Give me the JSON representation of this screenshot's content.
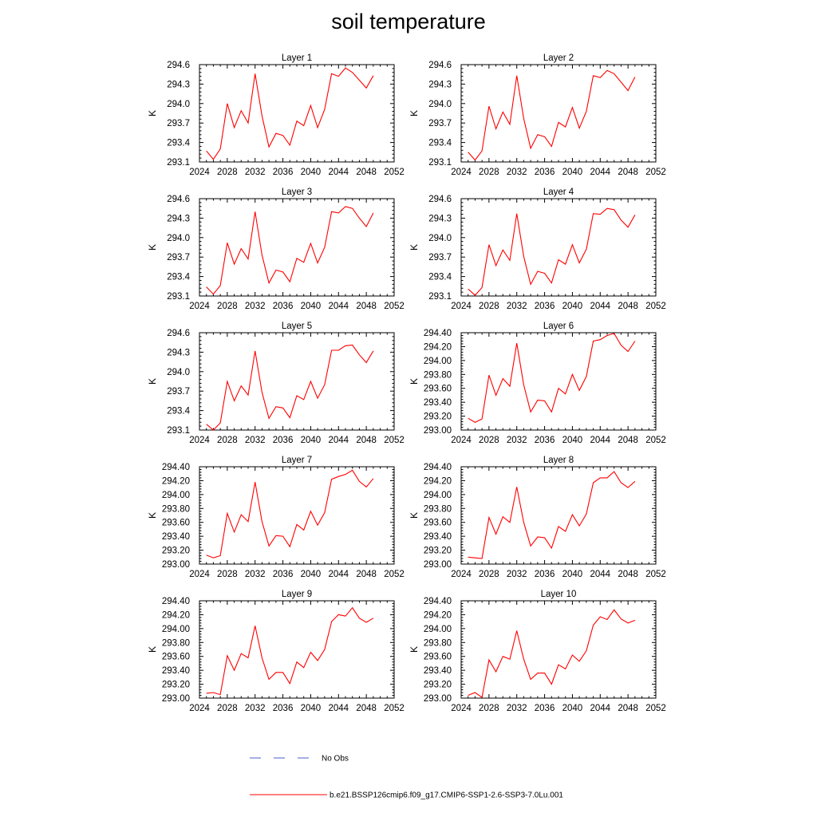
{
  "title": "soil temperature",
  "chart_data": [
    {
      "type": "line",
      "title": "Layer 1",
      "ylabel": "K",
      "xlim": [
        2024,
        2052
      ],
      "xticks": [
        "2024",
        "2028",
        "2032",
        "2036",
        "2040",
        "2044",
        "2048",
        "2052"
      ],
      "ylim": [
        293.1,
        294.6
      ],
      "yticks": [
        "293.1",
        "293.4",
        "293.7",
        "294.0",
        "294.3",
        "294.6"
      ],
      "series": [
        {
          "color": "#ff0000",
          "x": [
            2025,
            2026,
            2027,
            2028,
            2029,
            2030,
            2031,
            2032,
            2033,
            2034,
            2035,
            2036,
            2037,
            2038,
            2039,
            2040,
            2041,
            2042,
            2043,
            2044,
            2045,
            2046,
            2047,
            2048,
            2049
          ],
          "y": [
            293.27,
            293.14,
            293.3,
            294.0,
            293.63,
            293.89,
            293.7,
            294.46,
            293.81,
            293.33,
            293.54,
            293.51,
            293.36,
            293.73,
            293.66,
            293.97,
            293.63,
            293.91,
            294.46,
            294.42,
            294.55,
            294.48,
            294.36,
            294.24,
            294.43
          ]
        }
      ]
    },
    {
      "type": "line",
      "title": "Layer 2",
      "ylabel": "K",
      "xlim": [
        2024,
        2052
      ],
      "xticks": [
        "2024",
        "2028",
        "2032",
        "2036",
        "2040",
        "2044",
        "2048",
        "2052"
      ],
      "ylim": [
        293.1,
        294.6
      ],
      "yticks": [
        "293.1",
        "293.4",
        "293.7",
        "294.0",
        "294.3",
        "294.6"
      ],
      "series": [
        {
          "color": "#ff0000",
          "x": [
            2025,
            2026,
            2027,
            2028,
            2029,
            2030,
            2031,
            2032,
            2033,
            2034,
            2035,
            2036,
            2037,
            2038,
            2039,
            2040,
            2041,
            2042,
            2043,
            2044,
            2045,
            2046,
            2047,
            2048,
            2049
          ],
          "y": [
            293.25,
            293.13,
            293.27,
            293.96,
            293.61,
            293.87,
            293.68,
            294.43,
            293.77,
            293.31,
            293.52,
            293.49,
            293.34,
            293.71,
            293.64,
            293.94,
            293.62,
            293.88,
            294.43,
            294.4,
            294.51,
            294.46,
            294.33,
            294.2,
            294.41
          ]
        }
      ]
    },
    {
      "type": "line",
      "title": "Layer 3",
      "ylabel": "K",
      "xlim": [
        2024,
        2052
      ],
      "xticks": [
        "2024",
        "2028",
        "2032",
        "2036",
        "2040",
        "2044",
        "2048",
        "2052"
      ],
      "ylim": [
        293.1,
        294.6
      ],
      "yticks": [
        "293.1",
        "293.4",
        "293.7",
        "294.0",
        "294.3",
        "294.6"
      ],
      "series": [
        {
          "color": "#ff0000",
          "x": [
            2025,
            2026,
            2027,
            2028,
            2029,
            2030,
            2031,
            2032,
            2033,
            2034,
            2035,
            2036,
            2037,
            2038,
            2039,
            2040,
            2041,
            2042,
            2043,
            2044,
            2045,
            2046,
            2047,
            2048,
            2049
          ],
          "y": [
            293.24,
            293.13,
            293.26,
            293.92,
            293.59,
            293.83,
            293.67,
            294.4,
            293.73,
            293.3,
            293.5,
            293.47,
            293.32,
            293.68,
            293.62,
            293.91,
            293.61,
            293.85,
            294.4,
            294.38,
            294.48,
            294.45,
            294.3,
            294.17,
            294.38
          ]
        }
      ]
    },
    {
      "type": "line",
      "title": "Layer 4",
      "ylabel": "K",
      "xlim": [
        2024,
        2052
      ],
      "xticks": [
        "2024",
        "2028",
        "2032",
        "2036",
        "2040",
        "2044",
        "2048",
        "2052"
      ],
      "ylim": [
        293.1,
        294.6
      ],
      "yticks": [
        "293.1",
        "293.4",
        "293.7",
        "294.0",
        "294.3",
        "294.6"
      ],
      "series": [
        {
          "color": "#ff0000",
          "x": [
            2025,
            2026,
            2027,
            2028,
            2029,
            2030,
            2031,
            2032,
            2033,
            2034,
            2035,
            2036,
            2037,
            2038,
            2039,
            2040,
            2041,
            2042,
            2043,
            2044,
            2045,
            2046,
            2047,
            2048,
            2049
          ],
          "y": [
            293.21,
            293.11,
            293.23,
            293.89,
            293.57,
            293.81,
            293.65,
            294.37,
            293.71,
            293.28,
            293.48,
            293.45,
            293.3,
            293.66,
            293.59,
            293.89,
            293.61,
            293.82,
            294.37,
            294.36,
            294.45,
            294.43,
            294.27,
            294.16,
            294.35
          ]
        }
      ]
    },
    {
      "type": "line",
      "title": "Layer 5",
      "ylabel": "K",
      "xlim": [
        2024,
        2052
      ],
      "xticks": [
        "2024",
        "2028",
        "2032",
        "2036",
        "2040",
        "2044",
        "2048",
        "2052"
      ],
      "ylim": [
        293.1,
        294.6
      ],
      "yticks": [
        "293.1",
        "293.4",
        "293.7",
        "294.0",
        "294.3",
        "294.6"
      ],
      "series": [
        {
          "color": "#ff0000",
          "x": [
            2025,
            2026,
            2027,
            2028,
            2029,
            2030,
            2031,
            2032,
            2033,
            2034,
            2035,
            2036,
            2037,
            2038,
            2039,
            2040,
            2041,
            2042,
            2043,
            2044,
            2045,
            2046,
            2047,
            2048,
            2049
          ],
          "y": [
            293.19,
            293.1,
            293.21,
            293.85,
            293.55,
            293.78,
            293.64,
            294.32,
            293.68,
            293.28,
            293.46,
            293.44,
            293.29,
            293.63,
            293.57,
            293.85,
            293.59,
            293.8,
            294.33,
            294.33,
            294.4,
            294.41,
            294.26,
            294.14,
            294.32
          ]
        }
      ]
    },
    {
      "type": "line",
      "title": "Layer 6",
      "ylabel": "K",
      "xlim": [
        2024,
        2052
      ],
      "xticks": [
        "2024",
        "2028",
        "2032",
        "2036",
        "2040",
        "2044",
        "2048",
        "2052"
      ],
      "ylim": [
        293.0,
        294.4
      ],
      "yticks": [
        "293.00",
        "293.20",
        "293.40",
        "293.60",
        "293.80",
        "294.00",
        "294.20",
        "294.40"
      ],
      "series": [
        {
          "color": "#ff0000",
          "x": [
            2025,
            2026,
            2027,
            2028,
            2029,
            2030,
            2031,
            2032,
            2033,
            2034,
            2035,
            2036,
            2037,
            2038,
            2039,
            2040,
            2041,
            2042,
            2043,
            2044,
            2045,
            2046,
            2047,
            2048,
            2049
          ],
          "y": [
            293.17,
            293.11,
            293.16,
            293.79,
            293.5,
            293.74,
            293.63,
            294.25,
            293.65,
            293.26,
            293.43,
            293.42,
            293.26,
            293.6,
            293.52,
            293.8,
            293.57,
            293.77,
            294.28,
            294.3,
            294.36,
            294.39,
            294.22,
            294.13,
            294.28
          ]
        }
      ]
    },
    {
      "type": "line",
      "title": "Layer 7",
      "ylabel": "K",
      "xlim": [
        2024,
        2052
      ],
      "xticks": [
        "2024",
        "2028",
        "2032",
        "2036",
        "2040",
        "2044",
        "2048",
        "2052"
      ],
      "ylim": [
        293.0,
        294.4
      ],
      "yticks": [
        "293.00",
        "293.20",
        "293.40",
        "293.60",
        "293.80",
        "294.00",
        "294.20",
        "294.40"
      ],
      "series": [
        {
          "color": "#ff0000",
          "x": [
            2025,
            2026,
            2027,
            2028,
            2029,
            2030,
            2031,
            2032,
            2033,
            2034,
            2035,
            2036,
            2037,
            2038,
            2039,
            2040,
            2041,
            2042,
            2043,
            2044,
            2045,
            2046,
            2047,
            2048,
            2049
          ],
          "y": [
            293.13,
            293.09,
            293.12,
            293.73,
            293.46,
            293.71,
            293.61,
            294.18,
            293.61,
            293.26,
            293.41,
            293.4,
            293.25,
            293.57,
            293.49,
            293.76,
            293.56,
            293.74,
            294.22,
            294.26,
            294.29,
            294.35,
            294.19,
            294.11,
            294.23
          ]
        }
      ]
    },
    {
      "type": "line",
      "title": "Layer 8",
      "ylabel": "K",
      "xlim": [
        2024,
        2052
      ],
      "xticks": [
        "2024",
        "2028",
        "2032",
        "2036",
        "2040",
        "2044",
        "2048",
        "2052"
      ],
      "ylim": [
        293.0,
        294.4
      ],
      "yticks": [
        "293.00",
        "293.20",
        "293.40",
        "293.60",
        "293.80",
        "294.00",
        "294.20",
        "294.40"
      ],
      "series": [
        {
          "color": "#ff0000",
          "x": [
            2025,
            2026,
            2027,
            2028,
            2029,
            2030,
            2031,
            2032,
            2033,
            2034,
            2035,
            2036,
            2037,
            2038,
            2039,
            2040,
            2041,
            2042,
            2043,
            2044,
            2045,
            2046,
            2047,
            2048,
            2049
          ],
          "y": [
            293.1,
            293.09,
            293.08,
            293.67,
            293.43,
            293.68,
            293.6,
            294.11,
            293.6,
            293.26,
            293.39,
            293.38,
            293.23,
            293.54,
            293.47,
            293.71,
            293.55,
            293.72,
            294.17,
            294.24,
            294.24,
            294.33,
            294.17,
            294.1,
            294.19
          ]
        }
      ]
    },
    {
      "type": "line",
      "title": "Layer 9",
      "ylabel": "K",
      "xlim": [
        2024,
        2052
      ],
      "xticks": [
        "2024",
        "2028",
        "2032",
        "2036",
        "2040",
        "2044",
        "2048",
        "2052"
      ],
      "ylim": [
        293.0,
        294.4
      ],
      "yticks": [
        "293.00",
        "293.20",
        "293.40",
        "293.60",
        "293.80",
        "294.00",
        "294.20",
        "294.40"
      ],
      "series": [
        {
          "color": "#ff0000",
          "x": [
            2025,
            2026,
            2027,
            2028,
            2029,
            2030,
            2031,
            2032,
            2033,
            2034,
            2035,
            2036,
            2037,
            2038,
            2039,
            2040,
            2041,
            2042,
            2043,
            2044,
            2045,
            2046,
            2047,
            2048,
            2049
          ],
          "y": [
            293.07,
            293.08,
            293.05,
            293.61,
            293.4,
            293.64,
            293.58,
            294.04,
            293.58,
            293.27,
            293.37,
            293.37,
            293.21,
            293.52,
            293.44,
            293.66,
            293.54,
            293.7,
            294.1,
            294.2,
            294.18,
            294.3,
            294.15,
            294.09,
            294.15
          ]
        }
      ]
    },
    {
      "type": "line",
      "title": "Layer 10",
      "ylabel": "K",
      "xlim": [
        2024,
        2052
      ],
      "xticks": [
        "2024",
        "2028",
        "2032",
        "2036",
        "2040",
        "2044",
        "2048",
        "2052"
      ],
      "ylim": [
        293.0,
        294.4
      ],
      "yticks": [
        "293.00",
        "293.20",
        "293.40",
        "293.60",
        "293.80",
        "294.00",
        "294.20",
        "294.40"
      ],
      "series": [
        {
          "color": "#ff0000",
          "x": [
            2025,
            2026,
            2027,
            2028,
            2029,
            2030,
            2031,
            2032,
            2033,
            2034,
            2035,
            2036,
            2037,
            2038,
            2039,
            2040,
            2041,
            2042,
            2043,
            2044,
            2045,
            2046,
            2047,
            2048,
            2049
          ],
          "y": [
            293.04,
            293.08,
            293.01,
            293.55,
            293.38,
            293.6,
            293.56,
            293.97,
            293.56,
            293.27,
            293.36,
            293.36,
            293.2,
            293.48,
            293.42,
            293.62,
            293.53,
            293.68,
            294.05,
            294.17,
            294.13,
            294.27,
            294.14,
            294.08,
            294.12
          ]
        }
      ]
    }
  ],
  "legend": {
    "items": [
      {
        "label": "No Obs",
        "color": "#4a5cc8",
        "style": "dashed"
      },
      {
        "label": "b.e21.BSSP126cmip6.f09_g17.CMIP6-SSP1-2.6-SSP3-7.0Lu.001",
        "color": "#ff0000",
        "style": "solid"
      }
    ]
  }
}
